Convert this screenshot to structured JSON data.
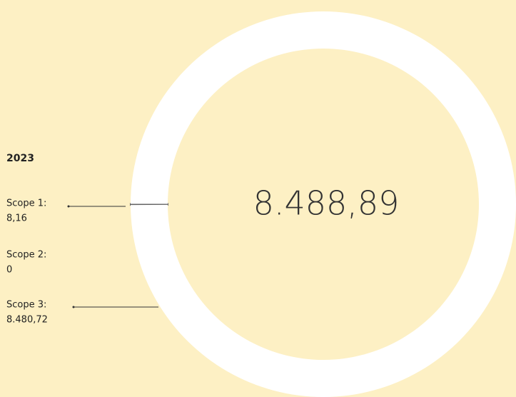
{
  "chart_data": {
    "type": "donut",
    "title": "2023",
    "categories": [
      "Scope 1:",
      "Scope 2:",
      "Scope 3:"
    ],
    "values": [
      8.16,
      0,
      8480.72
    ],
    "value_labels": [
      "8,16",
      "0",
      "8.480,72"
    ],
    "colors": [
      "#666666",
      "#999999",
      "#ffffff"
    ],
    "total": 8488.89,
    "total_label": "8.488,89"
  }
}
